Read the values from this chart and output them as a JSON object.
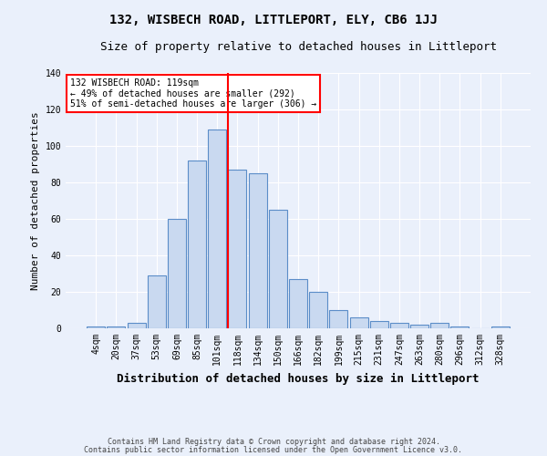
{
  "title": "132, WISBECH ROAD, LITTLEPORT, ELY, CB6 1JJ",
  "subtitle": "Size of property relative to detached houses in Littleport",
  "xlabel": "Distribution of detached houses by size in Littleport",
  "ylabel": "Number of detached properties",
  "footnote1": "Contains HM Land Registry data © Crown copyright and database right 2024.",
  "footnote2": "Contains public sector information licensed under the Open Government Licence v3.0.",
  "bar_labels": [
    "4sqm",
    "20sqm",
    "37sqm",
    "53sqm",
    "69sqm",
    "85sqm",
    "101sqm",
    "118sqm",
    "134sqm",
    "150sqm",
    "166sqm",
    "182sqm",
    "199sqm",
    "215sqm",
    "231sqm",
    "247sqm",
    "263sqm",
    "280sqm",
    "296sqm",
    "312sqm",
    "328sqm"
  ],
  "bar_values": [
    1,
    1,
    3,
    29,
    60,
    92,
    109,
    87,
    85,
    65,
    27,
    20,
    10,
    6,
    4,
    3,
    2,
    3,
    1,
    0,
    1
  ],
  "bar_color": "#c9d9f0",
  "bar_edge_color": "#5b8dc8",
  "vline_index": 7,
  "vline_color": "red",
  "annotation_text": "132 WISBECH ROAD: 119sqm\n← 49% of detached houses are smaller (292)\n51% of semi-detached houses are larger (306) →",
  "annotation_box_color": "white",
  "annotation_box_edge": "red",
  "ylim": [
    0,
    140
  ],
  "yticks": [
    0,
    20,
    40,
    60,
    80,
    100,
    120,
    140
  ],
  "bg_color": "#eaf0fb",
  "plot_bg_color": "#eaf0fb",
  "grid_color": "white",
  "title_fontsize": 10,
  "subtitle_fontsize": 9,
  "xlabel_fontsize": 9,
  "ylabel_fontsize": 8,
  "tick_fontsize": 7,
  "annotation_fontsize": 7,
  "footnote_fontsize": 6
}
